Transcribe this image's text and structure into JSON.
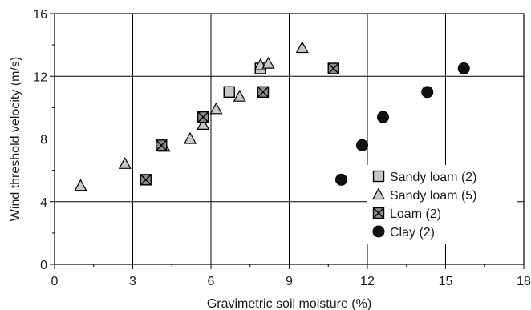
{
  "chart_data": {
    "type": "scatter",
    "xlabel": "Gravimetric soil moisture (%)",
    "ylabel": "Wind threshold velocity (m/s)",
    "xlim": [
      0,
      18
    ],
    "ylim": [
      0,
      16
    ],
    "xticks": [
      "0",
      "3",
      "6",
      "9",
      "12",
      "15",
      "18"
    ],
    "yticks": [
      "0",
      "4",
      "8",
      "12",
      "16"
    ],
    "grid": true,
    "legend_position": "lower-right",
    "series": [
      {
        "name": "Sandy loam (2)",
        "marker": "square",
        "color": "#c8c8c8",
        "points": [
          [
            6.7,
            11.0
          ],
          [
            7.9,
            12.5
          ]
        ]
      },
      {
        "name": "Sandy loam (5)",
        "marker": "triangle",
        "color": "#c8c8c8",
        "points": [
          [
            1.0,
            5.0
          ],
          [
            2.7,
            6.4
          ],
          [
            4.2,
            7.5
          ],
          [
            5.2,
            8.0
          ],
          [
            5.7,
            8.9
          ],
          [
            6.2,
            9.9
          ],
          [
            7.1,
            10.7
          ],
          [
            7.9,
            12.7
          ],
          [
            8.2,
            12.8
          ],
          [
            9.5,
            13.8
          ]
        ]
      },
      {
        "name": "Loam (2)",
        "marker": "crossed-square",
        "color": "#8c8c8c",
        "points": [
          [
            3.5,
            5.4
          ],
          [
            4.1,
            7.6
          ],
          [
            5.7,
            9.4
          ],
          [
            8.0,
            11.0
          ],
          [
            10.7,
            12.5
          ]
        ]
      },
      {
        "name": "Clay (2)",
        "marker": "circle",
        "color": "#111111",
        "points": [
          [
            11.0,
            5.4
          ],
          [
            11.8,
            7.6
          ],
          [
            12.6,
            9.4
          ],
          [
            14.3,
            11.0
          ],
          [
            15.7,
            12.5
          ]
        ]
      }
    ]
  }
}
